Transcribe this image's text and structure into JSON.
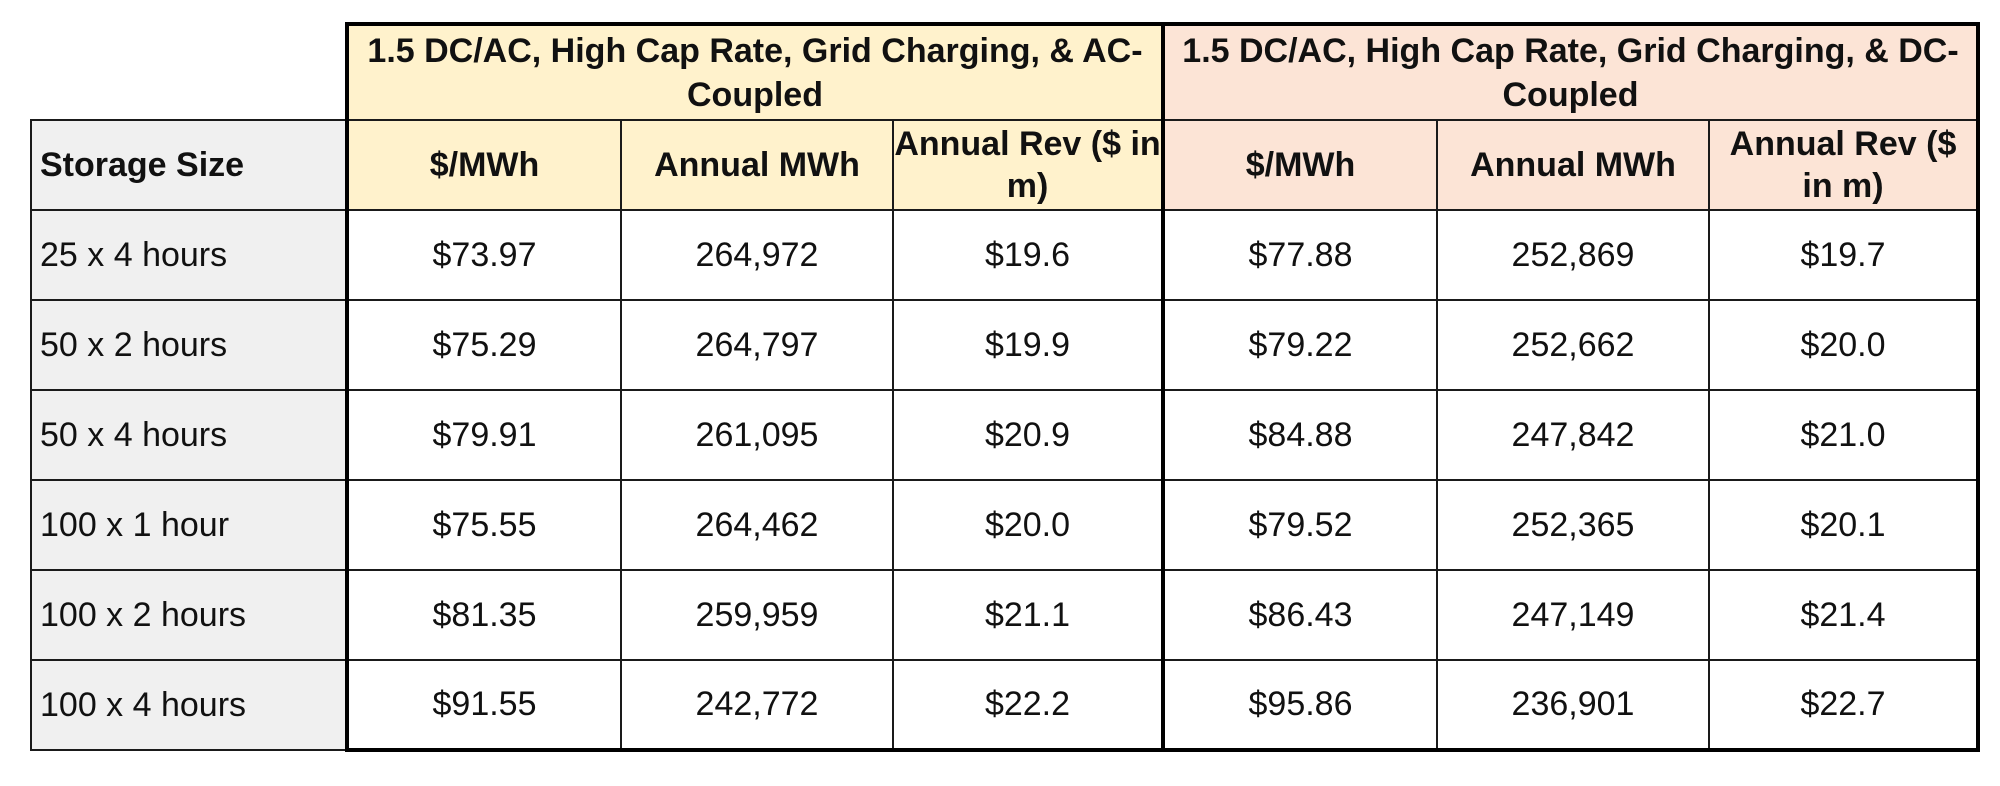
{
  "table": {
    "group_a_title": "1.5 DC/AC, High Cap Rate, Grid Charging, & AC-Coupled",
    "group_b_title": "1.5 DC/AC, High Cap Rate, Grid Charging, & DC-Coupled",
    "row_header": "Storage Size",
    "group_a_columns": [
      "$/MWh",
      "Annual MWh",
      "Annual Rev ($ in m)"
    ],
    "group_b_columns": [
      "$/MWh",
      "Annual MWh",
      "Annual Rev ($ in m)"
    ],
    "rows": [
      {
        "label": "25 x 4 hours",
        "a": [
          "$73.97",
          "264,972",
          "$19.6"
        ],
        "b": [
          "$77.88",
          "252,869",
          "$19.7"
        ]
      },
      {
        "label": "50 x 2 hours",
        "a": [
          "$75.29",
          "264,797",
          "$19.9"
        ],
        "b": [
          "$79.22",
          "252,662",
          "$20.0"
        ]
      },
      {
        "label": "50 x 4 hours",
        "a": [
          "$79.91",
          "261,095",
          "$20.9"
        ],
        "b": [
          "$84.88",
          "247,842",
          "$21.0"
        ]
      },
      {
        "label": "100 x 1 hour",
        "a": [
          "$75.55",
          "264,462",
          "$20.0"
        ],
        "b": [
          "$79.52",
          "252,365",
          "$20.1"
        ]
      },
      {
        "label": "100 x 2 hours",
        "a": [
          "$81.35",
          "259,959",
          "$21.1"
        ],
        "b": [
          "$86.43",
          "247,149",
          "$21.4"
        ]
      },
      {
        "label": "100 x 4 hours",
        "a": [
          "$91.55",
          "242,772",
          "$22.2"
        ],
        "b": [
          "$95.86",
          "236,901",
          "$22.7"
        ]
      }
    ],
    "colors": {
      "group_a_fill": "#fff2cc",
      "group_b_fill": "#fce4d6",
      "label_fill": "#f0f0f0",
      "border": "#000000"
    }
  }
}
